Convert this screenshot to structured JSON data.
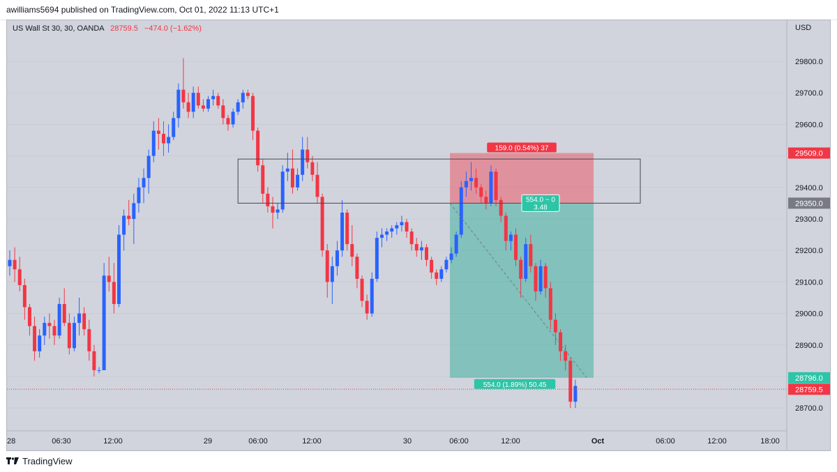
{
  "header": {
    "published": "awilliams5694 published on TradingView.com, Oct 01, 2022 11:13 UTC+1"
  },
  "chart_data": {
    "type": "candlestick",
    "symbol_line": "US Wall St 30, 30, OANDA",
    "last_price": "28759.5",
    "change": "−474.0 (−1.62%)",
    "currency": "USD",
    "y_ticks": [
      "29800.0",
      "29700.0",
      "29600.0",
      "29500.0",
      "29400.0",
      "29300.0",
      "29200.0",
      "29100.0",
      "29000.0",
      "28900.0",
      "28800.0",
      "28700.0"
    ],
    "x_ticks": [
      "28",
      "06:30",
      "12:00",
      "29",
      "06:00",
      "12:00",
      "30",
      "06:00",
      "12:00",
      "Oct",
      "06:00",
      "12:00",
      "18:00"
    ],
    "ylim": [
      28650,
      29900
    ],
    "price_labels": [
      {
        "value": 29509.0,
        "text": "29509.0",
        "color": "#f23645"
      },
      {
        "value": 29350.0,
        "text": "29350.0",
        "color": "#787b86"
      },
      {
        "value": 28796.0,
        "text": "28796.0",
        "color": "#2ec4a7"
      },
      {
        "value": 28759.5,
        "text": "28759.5",
        "color": "#f23645"
      }
    ],
    "position_tool": {
      "entry": 29350.0,
      "stop": 29509.0,
      "target": 28796.0,
      "stop_label": "159.0 (0.54%) 37",
      "target_label": "554.0 (1.89%) 50.45",
      "ratio_label_1": "554.0 ~ 0",
      "ratio_label_2": "3.48"
    },
    "zone_box": {
      "high": 29490,
      "low": 29350
    },
    "colors": {
      "up": "#2962ff",
      "down": "#f23645",
      "stop": "#f23645",
      "target": "#22ab94"
    },
    "candles": [
      [
        29150,
        29200,
        29120,
        29170
      ],
      [
        29170,
        29210,
        29100,
        29140
      ],
      [
        29140,
        29180,
        29070,
        29090
      ],
      [
        29090,
        29110,
        28980,
        29020
      ],
      [
        29020,
        29030,
        28930,
        28960
      ],
      [
        28960,
        28990,
        28850,
        28880
      ],
      [
        28880,
        28950,
        28860,
        28930
      ],
      [
        28930,
        28990,
        28900,
        28970
      ],
      [
        28970,
        29000,
        28920,
        28960
      ],
      [
        28960,
        28980,
        28900,
        28930
      ],
      [
        28930,
        29050,
        28920,
        29030
      ],
      [
        29030,
        29080,
        28960,
        28970
      ],
      [
        28970,
        29000,
        28870,
        28890
      ],
      [
        28890,
        28990,
        28880,
        28970
      ],
      [
        28970,
        29050,
        28930,
        29000
      ],
      [
        29000,
        29020,
        28930,
        28950
      ],
      [
        28950,
        28980,
        28850,
        28880
      ],
      [
        28880,
        28900,
        28800,
        28820
      ],
      [
        28820,
        28830,
        28810,
        28820
      ],
      [
        28820,
        29160,
        28820,
        29120
      ],
      [
        29120,
        29180,
        29070,
        29100
      ],
      [
        29100,
        29160,
        29000,
        29030
      ],
      [
        29030,
        29280,
        29020,
        29250
      ],
      [
        29250,
        29330,
        29200,
        29310
      ],
      [
        29310,
        29360,
        29280,
        29300
      ],
      [
        29300,
        29380,
        29220,
        29350
      ],
      [
        29350,
        29430,
        29320,
        29400
      ],
      [
        29400,
        29460,
        29350,
        29430
      ],
      [
        29430,
        29520,
        29380,
        29500
      ],
      [
        29500,
        29610,
        29480,
        29580
      ],
      [
        29580,
        29620,
        29520,
        29570
      ],
      [
        29570,
        29610,
        29500,
        29540
      ],
      [
        29540,
        29600,
        29510,
        29560
      ],
      [
        29560,
        29640,
        29550,
        29620
      ],
      [
        29620,
        29730,
        29590,
        29710
      ],
      [
        29710,
        29810,
        29650,
        29670
      ],
      [
        29670,
        29700,
        29620,
        29640
      ],
      [
        29640,
        29720,
        29620,
        29700
      ],
      [
        29700,
        29720,
        29650,
        29660
      ],
      [
        29660,
        29680,
        29640,
        29650
      ],
      [
        29650,
        29690,
        29640,
        29680
      ],
      [
        29680,
        29710,
        29660,
        29690
      ],
      [
        29690,
        29700,
        29650,
        29660
      ],
      [
        29660,
        29680,
        29600,
        29620
      ],
      [
        29620,
        29630,
        29580,
        29600
      ],
      [
        29600,
        29650,
        29590,
        29640
      ],
      [
        29640,
        29680,
        29630,
        29670
      ],
      [
        29670,
        29710,
        29650,
        29700
      ],
      [
        29700,
        29710,
        29680,
        29690
      ],
      [
        29690,
        29700,
        29550,
        29580
      ],
      [
        29580,
        29590,
        29450,
        29470
      ],
      [
        29470,
        29490,
        29350,
        29380
      ],
      [
        29380,
        29400,
        29320,
        29340
      ],
      [
        29340,
        29370,
        29270,
        29320
      ],
      [
        29320,
        29350,
        29300,
        29330
      ],
      [
        29330,
        29470,
        29320,
        29450
      ],
      [
        29450,
        29510,
        29420,
        29460
      ],
      [
        29460,
        29520,
        29380,
        29400
      ],
      [
        29400,
        29460,
        29390,
        29440
      ],
      [
        29440,
        29560,
        29420,
        29520
      ],
      [
        29520,
        29560,
        29460,
        29480
      ],
      [
        29480,
        29500,
        29420,
        29440
      ],
      [
        29440,
        29480,
        29350,
        29370
      ],
      [
        29370,
        29380,
        29180,
        29200
      ],
      [
        29200,
        29220,
        29050,
        29100
      ],
      [
        29100,
        29180,
        29030,
        29150
      ],
      [
        29150,
        29230,
        29120,
        29200
      ],
      [
        29200,
        29360,
        29180,
        29320
      ],
      [
        29320,
        29330,
        29200,
        29220
      ],
      [
        29220,
        29280,
        29150,
        29180
      ],
      [
        29180,
        29190,
        29080,
        29110
      ],
      [
        29110,
        29120,
        29020,
        29040
      ],
      [
        29040,
        29060,
        28980,
        29000
      ],
      [
        29000,
        29130,
        28990,
        29110
      ],
      [
        29110,
        29260,
        29100,
        29240
      ],
      [
        29240,
        29270,
        29210,
        29250
      ],
      [
        29250,
        29270,
        29230,
        29260
      ],
      [
        29260,
        29280,
        29240,
        29270
      ],
      [
        29270,
        29290,
        29250,
        29280
      ],
      [
        29280,
        29310,
        29260,
        29290
      ],
      [
        29290,
        29300,
        29240,
        29260
      ],
      [
        29260,
        29270,
        29200,
        29220
      ],
      [
        29220,
        29240,
        29180,
        29200
      ],
      [
        29200,
        29230,
        29170,
        29210
      ],
      [
        29210,
        29220,
        29150,
        29170
      ],
      [
        29170,
        29180,
        29110,
        29130
      ],
      [
        29130,
        29140,
        29090,
        29110
      ],
      [
        29110,
        29150,
        29100,
        29140
      ],
      [
        29140,
        29180,
        29130,
        29170
      ],
      [
        29170,
        29210,
        29160,
        29190
      ],
      [
        29190,
        29260,
        29180,
        29250
      ],
      [
        29250,
        29420,
        29240,
        29400
      ],
      [
        29400,
        29450,
        29370,
        29420
      ],
      [
        29420,
        29480,
        29390,
        29430
      ],
      [
        29430,
        29460,
        29380,
        29400
      ],
      [
        29400,
        29410,
        29350,
        29370
      ],
      [
        29370,
        29390,
        29330,
        29350
      ],
      [
        29350,
        29470,
        29340,
        29450
      ],
      [
        29450,
        29460,
        29340,
        29360
      ],
      [
        29360,
        29370,
        29290,
        29310
      ],
      [
        29310,
        29320,
        29200,
        29230
      ],
      [
        29230,
        29260,
        29200,
        29250
      ],
      [
        29250,
        29270,
        29150,
        29170
      ],
      [
        29170,
        29180,
        29050,
        29110
      ],
      [
        29110,
        29240,
        29100,
        29220
      ],
      [
        29220,
        29250,
        29130,
        29150
      ],
      [
        29150,
        29160,
        29040,
        29070
      ],
      [
        29070,
        29170,
        29060,
        29150
      ],
      [
        29150,
        29160,
        29050,
        29080
      ],
      [
        29080,
        29100,
        28950,
        28980
      ],
      [
        28980,
        29000,
        28900,
        28940
      ],
      [
        28940,
        28950,
        28850,
        28880
      ],
      [
        28880,
        28900,
        28820,
        28850
      ],
      [
        28850,
        28860,
        28700,
        28720
      ],
      [
        28720,
        28790,
        28700,
        28770
      ]
    ]
  }
}
